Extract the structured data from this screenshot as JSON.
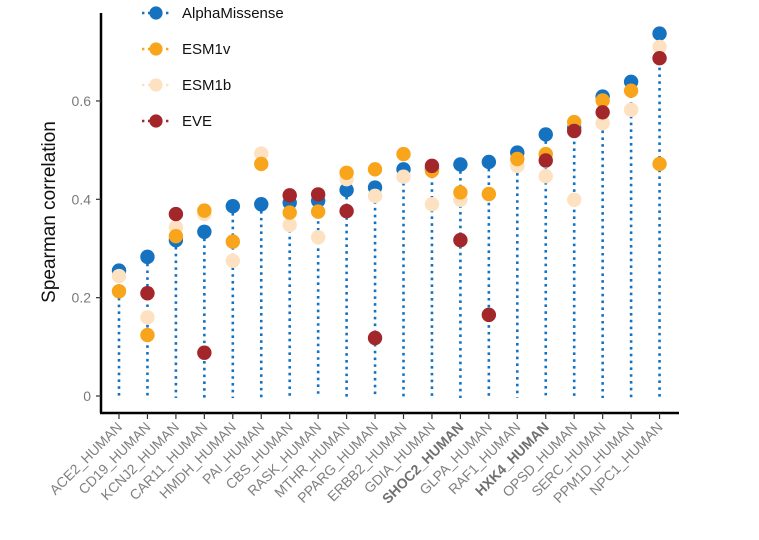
{
  "chart_data": {
    "type": "scatter",
    "subtype": "dot-lollipop",
    "title": "",
    "xlabel": "",
    "ylabel": "Spearman correlation",
    "ylim": [
      0,
      0.75
    ],
    "yticks": [
      0,
      0.2,
      0.4,
      0.6
    ],
    "ytick_labels": [
      "0",
      "0.2",
      "0.4",
      "0.6"
    ],
    "grid": false,
    "legend_position": "top-left",
    "categories": [
      "ACE2_HUMAN",
      "CD19_HUMAN",
      "KCNJ2_HUMAN",
      "CAR11_HUMAN",
      "HMDH_HUMAN",
      "PAI_HUMAN",
      "CBS_HUMAN",
      "RASK_HUMAN",
      "MTHR_HUMAN",
      "PPARG_HUMAN",
      "ERBB2_HUMAN",
      "GDIA_HUMAN",
      "SHOC2_HUMAN",
      "GLPA_HUMAN",
      "RAF1_HUMAN",
      "HXK4_HUMAN",
      "OPSD_HUMAN",
      "SERC_HUMAN",
      "PPM1D_HUMAN",
      "NPC1_HUMAN"
    ],
    "bold_categories": [
      "SHOC2_HUMAN",
      "HXK4_HUMAN"
    ],
    "stem_series": "AlphaMissense",
    "series": [
      {
        "name": "AlphaMissense",
        "color": "#1572c0",
        "values": [
          0.255,
          0.283,
          0.317,
          0.334,
          0.386,
          0.39,
          0.393,
          0.397,
          0.419,
          0.424,
          0.461,
          0.462,
          0.471,
          0.476,
          0.495,
          0.532,
          0.545,
          0.609,
          0.639,
          0.737
        ]
      },
      {
        "name": "ESM1v",
        "color": "#f8a51c",
        "values": [
          0.213,
          0.124,
          0.325,
          0.377,
          0.314,
          0.472,
          0.373,
          0.375,
          0.454,
          0.461,
          0.492,
          0.458,
          0.414,
          0.411,
          0.482,
          0.492,
          0.557,
          0.601,
          0.621,
          0.472
        ]
      },
      {
        "name": "ESM1b",
        "color": "#fde1c0",
        "values": [
          0.244,
          0.16,
          0.343,
          0.37,
          0.275,
          0.493,
          0.348,
          0.323,
          0.441,
          0.407,
          0.446,
          0.39,
          0.399,
          0.41,
          0.468,
          0.447,
          0.399,
          0.555,
          0.582,
          0.71
        ]
      },
      {
        "name": "EVE",
        "color": "#a3262a",
        "values": [
          null,
          0.209,
          0.37,
          0.088,
          null,
          null,
          0.408,
          0.41,
          0.376,
          0.118,
          null,
          0.468,
          0.317,
          0.165,
          null,
          0.479,
          0.539,
          0.577,
          null,
          0.687
        ]
      }
    ]
  }
}
